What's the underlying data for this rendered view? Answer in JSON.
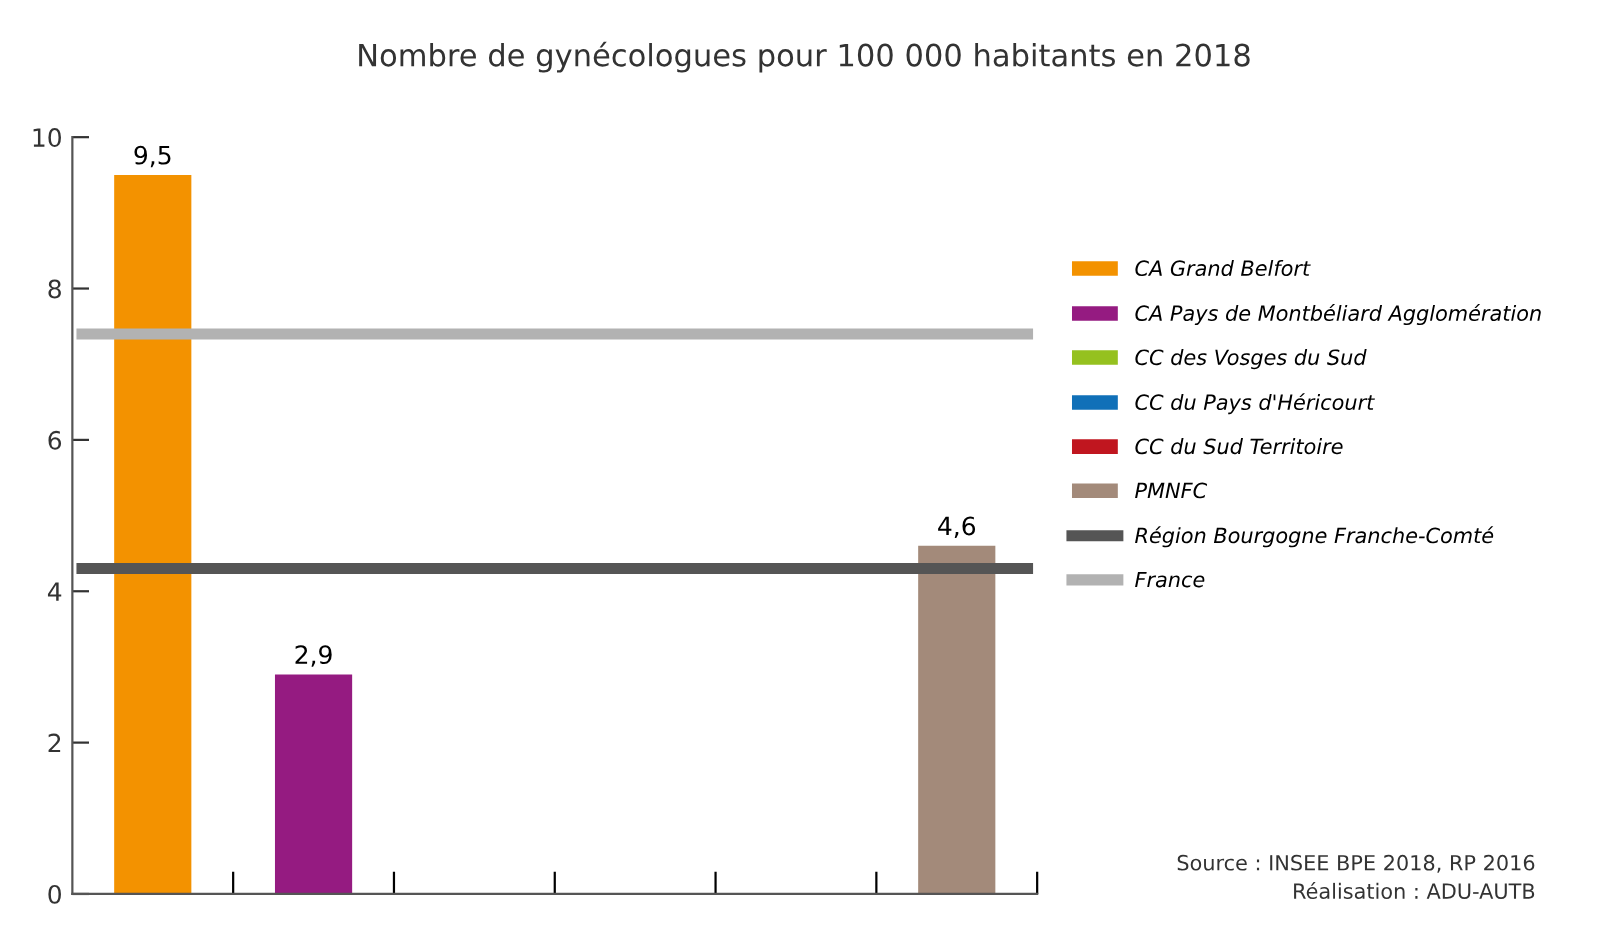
{
  "chart_data": {
    "type": "bar",
    "title": "Nombre de gynécologues pour 100 000 habitants en 2018",
    "categories": [
      null,
      null,
      null,
      null,
      null,
      null
    ],
    "series": [
      {
        "name": "CA Grand Belfort",
        "color": "#f39200",
        "values": [
          9.5,
          null,
          null,
          null,
          null,
          null
        ],
        "value_labels": [
          "9,5",
          null,
          null,
          null,
          null,
          null
        ]
      },
      {
        "name": "CA Pays de Montbéliard Agglomération",
        "color": "#951b81",
        "values": [
          null,
          2.9,
          null,
          null,
          null,
          null
        ],
        "value_labels": [
          null,
          "2,9",
          null,
          null,
          null,
          null
        ]
      },
      {
        "name": "CC des Vosges du Sud",
        "color": "#95c11f",
        "values": [
          null,
          null,
          null,
          null,
          null,
          null
        ]
      },
      {
        "name": "CC du Pays d'Héricourt",
        "color": "#1070b8",
        "values": [
          null,
          null,
          null,
          null,
          null,
          null
        ]
      },
      {
        "name": "CC du Sud Territoire",
        "color": "#c0161f",
        "values": [
          null,
          null,
          null,
          null,
          null,
          null
        ]
      },
      {
        "name": "PMNFC",
        "color": "#a38a7a",
        "values": [
          null,
          null,
          null,
          null,
          null,
          4.6
        ],
        "value_labels": [
          null,
          null,
          null,
          null,
          null,
          "4,6"
        ]
      }
    ],
    "ref_lines": [
      {
        "axis": "y",
        "value": 4.3,
        "label": "Région Bourgogne Franche-Comté",
        "color": "#555555"
      },
      {
        "axis": "y",
        "value": 7.4,
        "label": "France",
        "color": "#b2b2b2"
      }
    ],
    "ylim": [
      0,
      10
    ],
    "yticks": [
      0,
      2,
      4,
      6,
      8,
      10
    ],
    "grid": false,
    "legend": "right",
    "annotations": [
      "Source : INSEE BPE 2018, RP 2016",
      "Réalisation : ADU-AUTB"
    ]
  }
}
